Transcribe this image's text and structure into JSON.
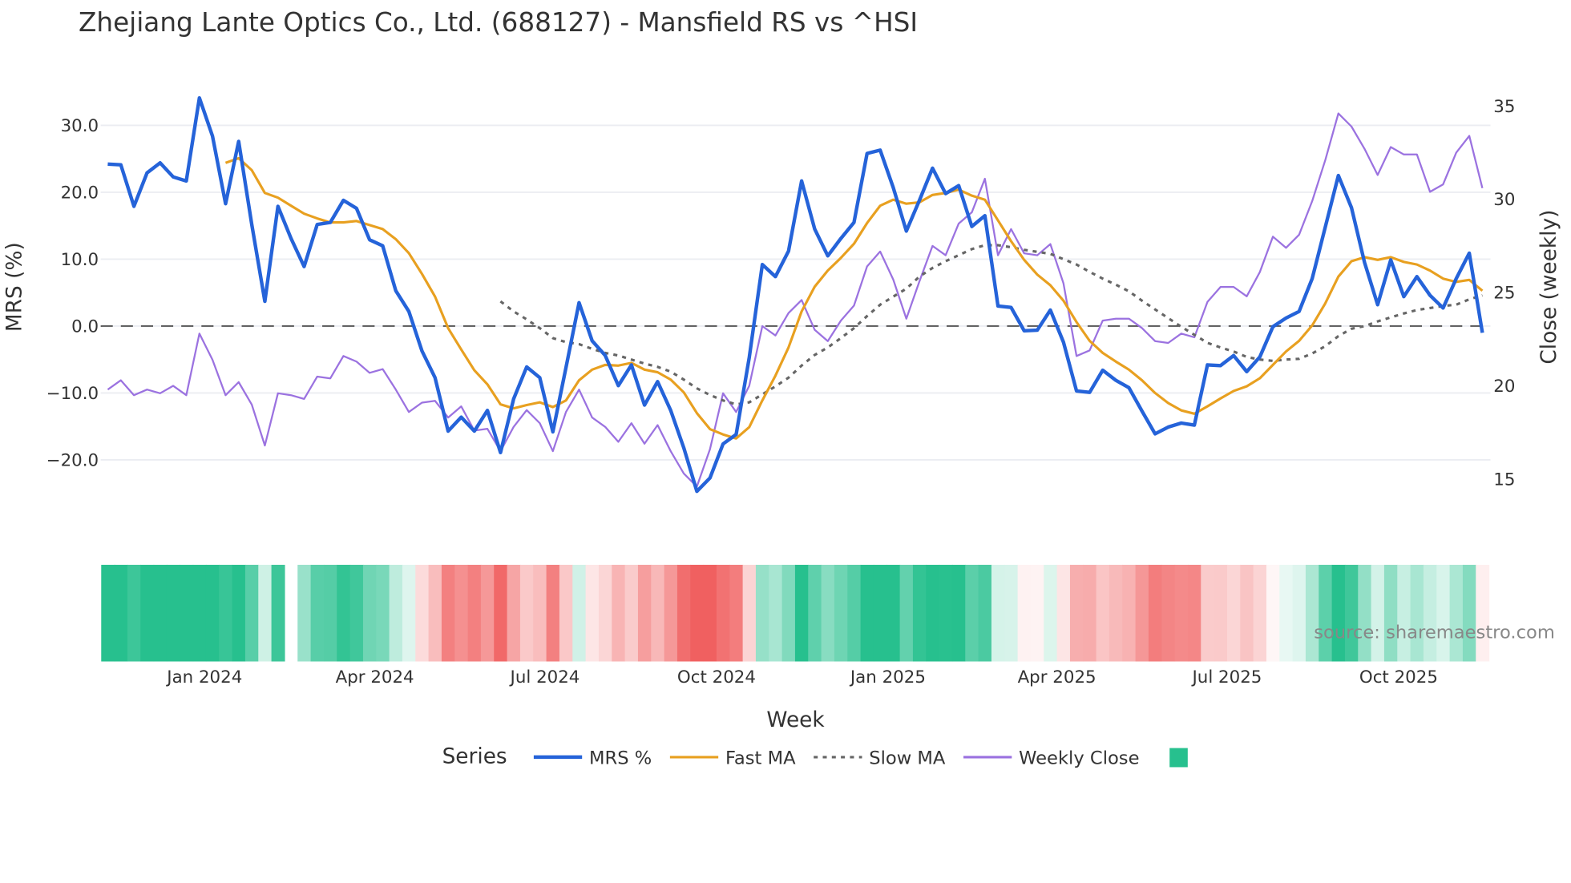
{
  "chart_data": {
    "type": "line",
    "title": "Zhejiang Lante Optics Co., Ltd. (688127) - Mansfield RS vs ^HSI",
    "xlabel": "Week",
    "ylabel": "MRS (%)",
    "y2label": "Close (weekly)",
    "ylim": [
      -26.5,
      38.2
    ],
    "y2lim": [
      13.7,
      36.9
    ],
    "yticks": [
      -20,
      -10,
      0,
      10,
      20,
      30
    ],
    "ytick_labels": [
      "−20.0",
      "−10.0",
      "0.0",
      "10.0",
      "20.0",
      "30.0"
    ],
    "y2ticks": [
      15,
      20,
      25,
      30,
      35
    ],
    "y2tick_labels": [
      "15",
      "20",
      "25",
      "30",
      "35"
    ],
    "x_unit": "week index (first week ~ mid Nov 2023)",
    "xticks": [
      7.4,
      20.4,
      33.4,
      46.5,
      59.6,
      72.5,
      85.5,
      98.6
    ],
    "xtick_labels": [
      "Jan 2024",
      "Apr 2024",
      "Jul 2024",
      "Oct 2024",
      "Jan 2025",
      "Apr 2025",
      "Jul 2025",
      "Oct 2025"
    ],
    "zero_line": 0,
    "grid": true,
    "legend_title": "Series",
    "legend_position": "bottom",
    "series": [
      {
        "name": "MRS %",
        "color": "#2563d9",
        "axis": "left",
        "values": [
          24.2,
          24.1,
          17.9,
          22.9,
          24.4,
          22.3,
          21.7,
          34.1,
          28.4,
          18.3,
          27.6,
          15.2,
          3.7,
          17.9,
          13.1,
          8.9,
          15.2,
          15.5,
          18.8,
          17.6,
          12.9,
          12.0,
          5.3,
          2.2,
          -3.7,
          -7.7,
          -15.7,
          -13.6,
          -15.7,
          -12.6,
          -18.9,
          -10.9,
          -6.1,
          -7.7,
          -15.8,
          -6.2,
          3.5,
          -2.2,
          -4.4,
          -8.9,
          -5.8,
          -11.8,
          -8.3,
          -12.6,
          -18.2,
          -24.7,
          -22.7,
          -17.6,
          -16.2,
          -4.7,
          9.2,
          7.4,
          11.2,
          21.7,
          14.5,
          10.5,
          13.1,
          15.5,
          25.8,
          26.3,
          20.7,
          14.2,
          18.8,
          23.6,
          19.8,
          21.0,
          14.9,
          16.5,
          3.0,
          2.8,
          -0.7,
          -0.6,
          2.4,
          -2.4,
          -9.7,
          -9.9,
          -6.6,
          -8.1,
          -9.2,
          -12.7,
          -16.1,
          -15.1,
          -14.5,
          -14.8,
          -5.8,
          -5.9,
          -4.4,
          -6.8,
          -4.6,
          -0.1,
          1.2,
          2.2,
          7.1,
          14.8,
          22.5,
          17.7,
          9.5,
          3.2,
          9.9,
          4.4,
          7.4,
          4.6,
          2.7,
          7.1,
          10.9,
          -1.0
        ]
      },
      {
        "name": "Fast MA",
        "color": "#e8a020",
        "axis": "left",
        "values": [
          null,
          null,
          null,
          null,
          null,
          null,
          null,
          null,
          null,
          24.4,
          25.1,
          23.3,
          19.9,
          19.2,
          18.0,
          16.8,
          16.1,
          15.5,
          15.5,
          15.7,
          15.1,
          14.5,
          13.0,
          10.9,
          7.8,
          4.4,
          -0.3,
          -3.5,
          -6.6,
          -8.7,
          -11.7,
          -12.3,
          -11.8,
          -11.4,
          -12.1,
          -11.1,
          -8.1,
          -6.5,
          -5.8,
          -5.9,
          -5.5,
          -6.5,
          -6.9,
          -8.0,
          -9.9,
          -13.0,
          -15.4,
          -16.2,
          -16.8,
          -15.1,
          -11.1,
          -7.4,
          -3.2,
          2.2,
          5.9,
          8.3,
          10.2,
          12.3,
          15.4,
          18.0,
          18.9,
          18.3,
          18.5,
          19.6,
          19.9,
          20.4,
          19.5,
          18.9,
          15.8,
          12.7,
          9.9,
          7.7,
          6.1,
          3.8,
          0.6,
          -2.2,
          -4.0,
          -5.3,
          -6.5,
          -8.1,
          -10.0,
          -11.5,
          -12.6,
          -13.1,
          -12.0,
          -10.8,
          -9.7,
          -9.0,
          -7.8,
          -5.8,
          -3.8,
          -2.2,
          0.1,
          3.4,
          7.4,
          9.7,
          10.3,
          9.9,
          10.3,
          9.6,
          9.2,
          8.3,
          7.1,
          6.6,
          6.9,
          5.3
        ]
      },
      {
        "name": "Slow MA",
        "color": "#666666",
        "axis": "left",
        "dash": "dot",
        "values": [
          null,
          null,
          null,
          null,
          null,
          null,
          null,
          null,
          null,
          null,
          null,
          null,
          null,
          null,
          null,
          null,
          null,
          null,
          null,
          null,
          null,
          null,
          null,
          null,
          null,
          null,
          null,
          null,
          null,
          null,
          3.7,
          2.2,
          1.0,
          -0.3,
          -1.8,
          -2.4,
          -2.7,
          -3.4,
          -4.0,
          -4.4,
          -5.0,
          -5.6,
          -6.1,
          -6.8,
          -8.0,
          -9.3,
          -10.3,
          -11.1,
          -11.7,
          -11.4,
          -10.2,
          -9.0,
          -7.7,
          -5.9,
          -4.3,
          -3.2,
          -1.8,
          -0.3,
          1.5,
          3.2,
          4.4,
          5.6,
          7.4,
          8.7,
          9.7,
          10.6,
          11.5,
          12.1,
          12.1,
          11.8,
          11.4,
          11.1,
          10.8,
          10.0,
          9.2,
          8.1,
          7.1,
          6.2,
          5.2,
          3.8,
          2.5,
          1.2,
          -0.1,
          -1.3,
          -2.5,
          -3.2,
          -3.8,
          -4.6,
          -5.0,
          -5.2,
          -5.0,
          -4.9,
          -4.1,
          -3.0,
          -1.5,
          -0.4,
          0.0,
          0.7,
          1.3,
          1.9,
          2.4,
          2.7,
          3.0,
          3.2,
          4.0,
          4.6
        ]
      },
      {
        "name": "Weekly Close",
        "color": "#9b72e0",
        "axis": "right",
        "values": [
          19.8,
          20.3,
          19.5,
          19.8,
          19.6,
          20.0,
          19.5,
          22.8,
          21.4,
          19.5,
          20.2,
          19.0,
          16.8,
          19.6,
          19.5,
          19.3,
          20.5,
          20.4,
          21.6,
          21.3,
          20.7,
          20.9,
          19.8,
          18.6,
          19.1,
          19.2,
          18.3,
          18.9,
          17.6,
          17.7,
          16.5,
          17.8,
          18.7,
          18.0,
          16.5,
          18.6,
          19.8,
          18.3,
          17.8,
          17.0,
          18.0,
          16.9,
          17.9,
          16.5,
          15.3,
          14.6,
          16.6,
          19.6,
          18.6,
          20.0,
          23.2,
          22.7,
          23.9,
          24.6,
          23.0,
          22.4,
          23.5,
          24.3,
          26.4,
          27.2,
          25.7,
          23.6,
          25.6,
          27.5,
          27.0,
          28.7,
          29.3,
          31.1,
          27.0,
          28.4,
          27.1,
          27.0,
          27.6,
          25.5,
          21.6,
          21.9,
          23.5,
          23.6,
          23.6,
          23.1,
          22.4,
          22.3,
          22.8,
          22.6,
          24.5,
          25.3,
          25.3,
          24.8,
          26.1,
          28.0,
          27.4,
          28.1,
          29.9,
          32.1,
          34.6,
          33.9,
          32.7,
          31.3,
          32.8,
          32.4,
          32.4,
          30.4,
          30.8,
          32.5,
          33.4,
          30.6
        ]
      }
    ],
    "heatmap": {
      "source_series": "MRS %",
      "missing_weeks": [
        14
      ],
      "positive_color": "#27c08e",
      "negative_color": "#f06060",
      "legend_color": "#27c08e"
    },
    "annotation": "source: sharemaestro.com"
  }
}
